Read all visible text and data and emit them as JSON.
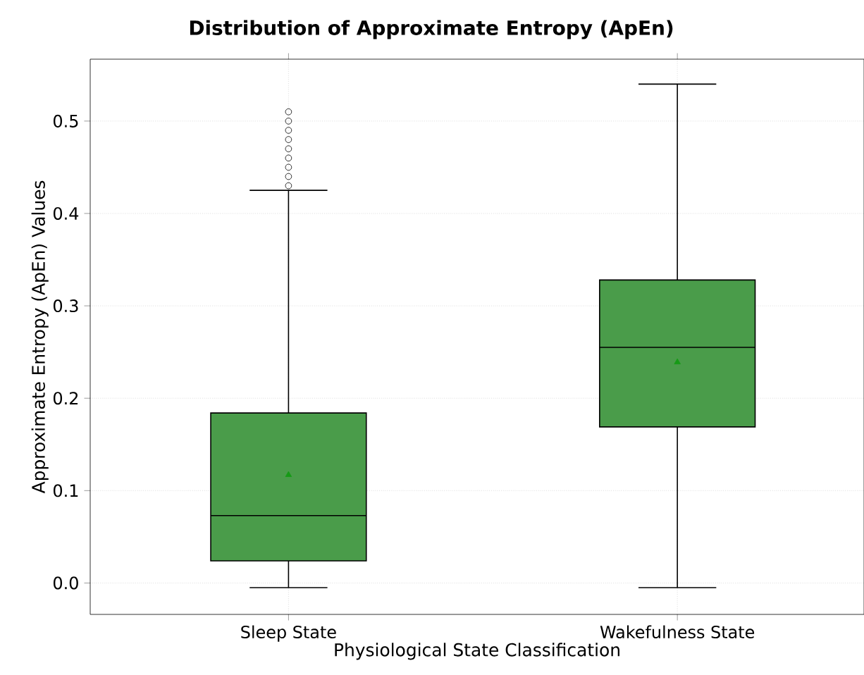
{
  "chart_data": {
    "type": "box",
    "title": "Distribution of Approximate Entropy (ApEn)",
    "xlabel": "Physiological State Classification",
    "ylabel": "Approximate Entropy (ApEn) Values",
    "categories": [
      "Sleep State",
      "Wakefulness State"
    ],
    "series": [
      {
        "color": "#4a9c4a",
        "boxes": [
          {
            "low": -0.005,
            "q1": 0.024,
            "median": 0.073,
            "q3": 0.184,
            "high": 0.425,
            "mean": 0.117,
            "outliers": [
              0.43,
              0.44,
              0.45,
              0.46,
              0.47,
              0.48,
              0.49,
              0.5,
              0.51
            ]
          },
          {
            "low": -0.005,
            "q1": 0.169,
            "median": 0.255,
            "q3": 0.328,
            "high": 0.54,
            "mean": 0.239
          }
        ]
      }
    ],
    "ylim": [
      -0.034,
      0.567
    ],
    "yticks": [
      {
        "value": 0,
        "label": "0.0"
      },
      0.1,
      0.2,
      0.3,
      0.4,
      0.5
    ],
    "grid": true
  }
}
